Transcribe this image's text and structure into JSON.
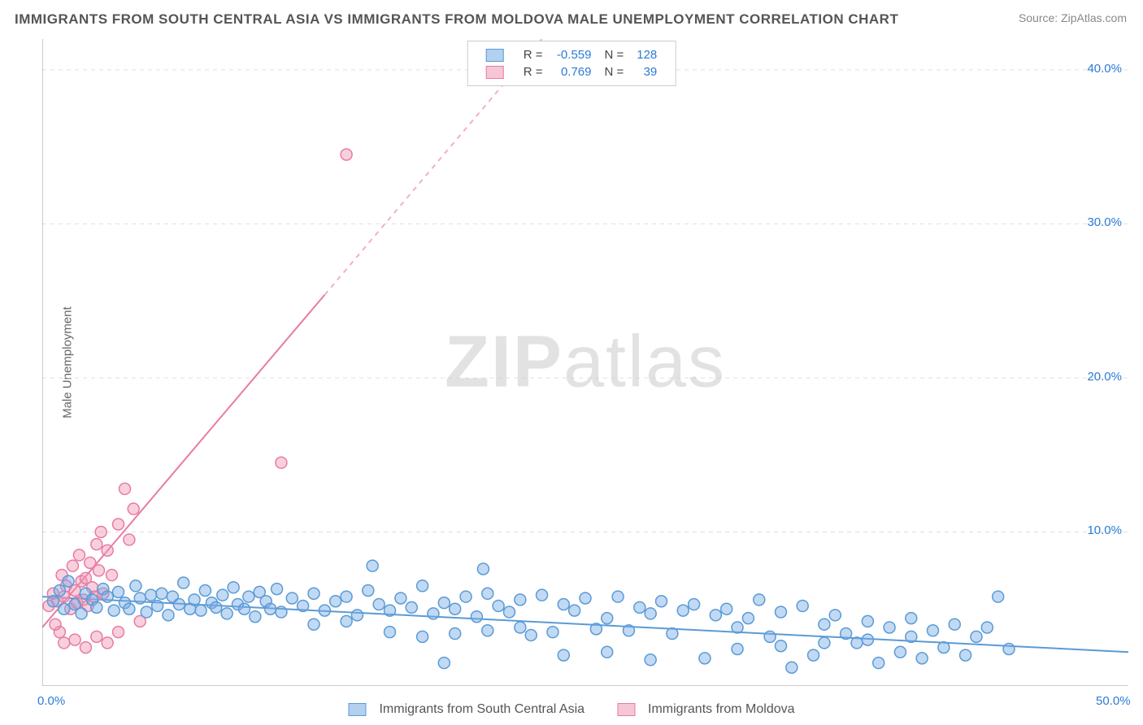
{
  "title": "IMMIGRANTS FROM SOUTH CENTRAL ASIA VS IMMIGRANTS FROM MOLDOVA MALE UNEMPLOYMENT CORRELATION CHART",
  "source": "Source: ZipAtlas.com",
  "ylabel": "Male Unemployment",
  "watermark_zip": "ZIP",
  "watermark_atlas": "atlas",
  "chart": {
    "type": "scatter",
    "xlim": [
      0,
      50
    ],
    "ylim": [
      0,
      42
    ],
    "xticks": [
      0,
      5,
      10,
      15,
      20,
      25,
      30,
      35,
      40,
      45,
      50
    ],
    "xtick_labels": [
      "0.0%",
      "",
      "",
      "",
      "",
      "",
      "",
      "",
      "",
      "",
      "50.0%"
    ],
    "yticks": [
      10,
      20,
      30,
      40
    ],
    "ytick_labels": [
      "10.0%",
      "20.0%",
      "30.0%",
      "40.0%"
    ],
    "grid_color": "#e0e0e0",
    "grid_dash": "5,5",
    "axis_color": "#999999",
    "background_color": "#ffffff",
    "tick_label_color": "#2b7bd6",
    "marker_radius": 7,
    "marker_stroke_width": 1.5,
    "line_width": 2
  },
  "series": [
    {
      "name": "Immigrants from South Central Asia",
      "id": "sca",
      "fill_color": "rgba(120,170,230,0.45)",
      "stroke_color": "#5a9bd5",
      "swatch_fill": "#b3d0ef",
      "swatch_border": "#5a9bd5",
      "R": "-0.559",
      "N": "128",
      "trend": {
        "x1": 0,
        "y1": 5.8,
        "x2": 50,
        "y2": 2.2,
        "dashed_from_x": null
      },
      "points": [
        [
          0.5,
          5.5
        ],
        [
          0.8,
          6.2
        ],
        [
          1.0,
          5.0
        ],
        [
          1.2,
          6.8
        ],
        [
          1.5,
          5.3
        ],
        [
          1.8,
          4.7
        ],
        [
          2.0,
          6.0
        ],
        [
          2.3,
          5.6
        ],
        [
          2.5,
          5.1
        ],
        [
          2.8,
          6.3
        ],
        [
          3.0,
          5.8
        ],
        [
          3.3,
          4.9
        ],
        [
          3.5,
          6.1
        ],
        [
          3.8,
          5.4
        ],
        [
          4.0,
          5.0
        ],
        [
          4.3,
          6.5
        ],
        [
          4.5,
          5.7
        ],
        [
          4.8,
          4.8
        ],
        [
          5.0,
          5.9
        ],
        [
          5.3,
          5.2
        ],
        [
          5.5,
          6.0
        ],
        [
          5.8,
          4.6
        ],
        [
          6.0,
          5.8
        ],
        [
          6.3,
          5.3
        ],
        [
          6.5,
          6.7
        ],
        [
          6.8,
          5.0
        ],
        [
          7.0,
          5.6
        ],
        [
          7.3,
          4.9
        ],
        [
          7.5,
          6.2
        ],
        [
          7.8,
          5.4
        ],
        [
          8.0,
          5.1
        ],
        [
          8.3,
          5.9
        ],
        [
          8.5,
          4.7
        ],
        [
          8.8,
          6.4
        ],
        [
          9.0,
          5.3
        ],
        [
          9.3,
          5.0
        ],
        [
          9.5,
          5.8
        ],
        [
          9.8,
          4.5
        ],
        [
          10.0,
          6.1
        ],
        [
          10.3,
          5.5
        ],
        [
          10.5,
          5.0
        ],
        [
          10.8,
          6.3
        ],
        [
          11.0,
          4.8
        ],
        [
          11.5,
          5.7
        ],
        [
          12.0,
          5.2
        ],
        [
          12.5,
          6.0
        ],
        [
          13.0,
          4.9
        ],
        [
          13.5,
          5.5
        ],
        [
          14.0,
          5.8
        ],
        [
          14.5,
          4.6
        ],
        [
          15.0,
          6.2
        ],
        [
          15.2,
          7.8
        ],
        [
          15.5,
          5.3
        ],
        [
          16.0,
          4.9
        ],
        [
          16.5,
          5.7
        ],
        [
          17.0,
          5.1
        ],
        [
          17.5,
          6.5
        ],
        [
          18.0,
          4.7
        ],
        [
          18.5,
          5.4
        ],
        [
          19.0,
          5.0
        ],
        [
          19.5,
          5.8
        ],
        [
          20.0,
          4.5
        ],
        [
          20.3,
          7.6
        ],
        [
          20.5,
          6.0
        ],
        [
          21.0,
          5.2
        ],
        [
          21.5,
          4.8
        ],
        [
          22.0,
          5.6
        ],
        [
          22.5,
          3.3
        ],
        [
          23.0,
          5.9
        ],
        [
          23.5,
          3.5
        ],
        [
          24.0,
          5.3
        ],
        [
          24.5,
          4.9
        ],
        [
          25.0,
          5.7
        ],
        [
          25.5,
          3.7
        ],
        [
          26.0,
          4.4
        ],
        [
          26.5,
          5.8
        ],
        [
          27.0,
          3.6
        ],
        [
          27.5,
          5.1
        ],
        [
          28.0,
          4.7
        ],
        [
          28.5,
          5.5
        ],
        [
          29.0,
          3.4
        ],
        [
          29.5,
          4.9
        ],
        [
          30.0,
          5.3
        ],
        [
          30.5,
          1.8
        ],
        [
          31.0,
          4.6
        ],
        [
          31.5,
          5.0
        ],
        [
          32.0,
          3.8
        ],
        [
          32.5,
          4.4
        ],
        [
          33.0,
          5.6
        ],
        [
          33.5,
          3.2
        ],
        [
          34.0,
          4.8
        ],
        [
          34.5,
          1.2
        ],
        [
          35.0,
          5.2
        ],
        [
          35.5,
          2.0
        ],
        [
          36.0,
          4.0
        ],
        [
          36.5,
          4.6
        ],
        [
          37.0,
          3.4
        ],
        [
          37.5,
          2.8
        ],
        [
          38.0,
          4.2
        ],
        [
          38.5,
          1.5
        ],
        [
          39.0,
          3.8
        ],
        [
          39.5,
          2.2
        ],
        [
          40.0,
          4.4
        ],
        [
          40.5,
          1.8
        ],
        [
          41.0,
          3.6
        ],
        [
          41.5,
          2.5
        ],
        [
          42.0,
          4.0
        ],
        [
          42.5,
          2.0
        ],
        [
          43.0,
          3.2
        ],
        [
          43.5,
          3.8
        ],
        [
          44.0,
          5.8
        ],
        [
          44.5,
          2.4
        ],
        [
          18.5,
          1.5
        ],
        [
          28.0,
          1.7
        ],
        [
          16.0,
          3.5
        ],
        [
          17.5,
          3.2
        ],
        [
          19.0,
          3.4
        ],
        [
          20.5,
          3.6
        ],
        [
          22.0,
          3.8
        ],
        [
          12.5,
          4.0
        ],
        [
          14.0,
          4.2
        ],
        [
          24.0,
          2.0
        ],
        [
          26.0,
          2.2
        ],
        [
          32.0,
          2.4
        ],
        [
          34.0,
          2.6
        ],
        [
          36.0,
          2.8
        ],
        [
          38.0,
          3.0
        ],
        [
          40.0,
          3.2
        ]
      ]
    },
    {
      "name": "Immigrants from Moldova",
      "id": "moldova",
      "fill_color": "rgba(240,150,180,0.45)",
      "stroke_color": "#e87ba5",
      "swatch_fill": "#f5c6d6",
      "swatch_border": "#e87ba5",
      "R": "0.769",
      "N": "39",
      "trend": {
        "x1": 0,
        "y1": 3.8,
        "x2": 23,
        "y2": 42,
        "dashed_from_x": 13
      },
      "points": [
        [
          0.3,
          5.2
        ],
        [
          0.5,
          6.0
        ],
        [
          0.7,
          5.5
        ],
        [
          0.9,
          7.2
        ],
        [
          1.0,
          5.8
        ],
        [
          1.1,
          6.5
        ],
        [
          1.3,
          5.0
        ],
        [
          1.4,
          7.8
        ],
        [
          1.5,
          6.2
        ],
        [
          1.6,
          5.4
        ],
        [
          1.7,
          8.5
        ],
        [
          1.8,
          6.8
        ],
        [
          1.9,
          5.6
        ],
        [
          2.0,
          7.0
        ],
        [
          2.1,
          5.2
        ],
        [
          2.2,
          8.0
        ],
        [
          2.3,
          6.4
        ],
        [
          2.4,
          5.8
        ],
        [
          2.5,
          9.2
        ],
        [
          2.6,
          7.5
        ],
        [
          2.8,
          6.0
        ],
        [
          3.0,
          8.8
        ],
        [
          3.2,
          7.2
        ],
        [
          3.5,
          10.5
        ],
        [
          3.8,
          12.8
        ],
        [
          4.0,
          9.5
        ],
        [
          4.2,
          11.5
        ],
        [
          2.0,
          2.5
        ],
        [
          1.5,
          3.0
        ],
        [
          1.0,
          2.8
        ],
        [
          0.8,
          3.5
        ],
        [
          0.6,
          4.0
        ],
        [
          2.5,
          3.2
        ],
        [
          3.0,
          2.8
        ],
        [
          3.5,
          3.5
        ],
        [
          4.5,
          4.2
        ],
        [
          11.0,
          14.5
        ],
        [
          14.0,
          34.5
        ],
        [
          2.7,
          10.0
        ]
      ]
    }
  ],
  "legend_bottom": [
    {
      "label": "Immigrants from South Central Asia",
      "series_id": "sca"
    },
    {
      "label": "Immigrants from Moldova",
      "series_id": "moldova"
    }
  ]
}
